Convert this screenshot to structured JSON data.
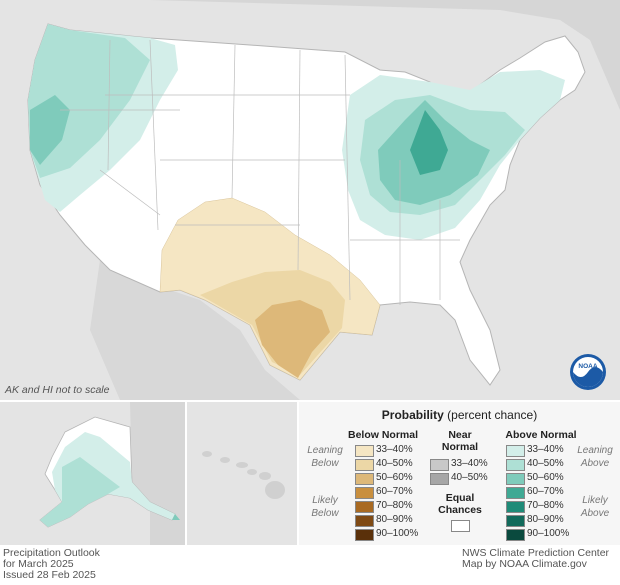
{
  "map_note": "AK and HI not to scale",
  "legend": {
    "title_bold": "Probability",
    "title_rest": " (percent chance)",
    "below_header": "Below Normal",
    "near_header_line1": "Near",
    "near_header_line2": "Normal",
    "above_header": "Above Normal",
    "leaning_left": [
      "Leaning",
      "Below"
    ],
    "likely_left": [
      "Likely",
      "Below"
    ],
    "leaning_right": [
      "Leaning",
      "Above"
    ],
    "likely_right": [
      "Likely",
      "Above"
    ],
    "equal_line1": "Equal",
    "equal_line2": "Chances",
    "below": [
      {
        "label": "33–40%",
        "color": "#f5e6c3"
      },
      {
        "label": "40–50%",
        "color": "#ecd7a6"
      },
      {
        "label": "50–60%",
        "color": "#ddb879"
      },
      {
        "label": "60–70%",
        "color": "#c98f3e"
      },
      {
        "label": "70–80%",
        "color": "#a96a22"
      },
      {
        "label": "80–90%",
        "color": "#7f4a14"
      },
      {
        "label": "90–100%",
        "color": "#5a300a"
      }
    ],
    "near": [
      {
        "label": "33–40%",
        "color": "#c8c8c8"
      },
      {
        "label": "40–50%",
        "color": "#a6a6a6"
      }
    ],
    "equal_color": "#ffffff",
    "above": [
      {
        "label": "33–40%",
        "color": "#d3eee9"
      },
      {
        "label": "40–50%",
        "color": "#aee0d5"
      },
      {
        "label": "50–60%",
        "color": "#7fcbbb"
      },
      {
        "label": "60–70%",
        "color": "#3fa994"
      },
      {
        "label": "70–80%",
        "color": "#1f8b78"
      },
      {
        "label": "80–90%",
        "color": "#126a5b"
      },
      {
        "label": "90–100%",
        "color": "#0a4a3e"
      }
    ]
  },
  "footer": {
    "left_line1": "Precipitation Outlook",
    "left_line2": "for March 2025",
    "left_line3": "Issued 28 Feb 2025",
    "right_line1": "NWS Climate Prediction Center",
    "right_line2": "Map by NOAA Climate.gov"
  },
  "logo_text": "NOAA"
}
